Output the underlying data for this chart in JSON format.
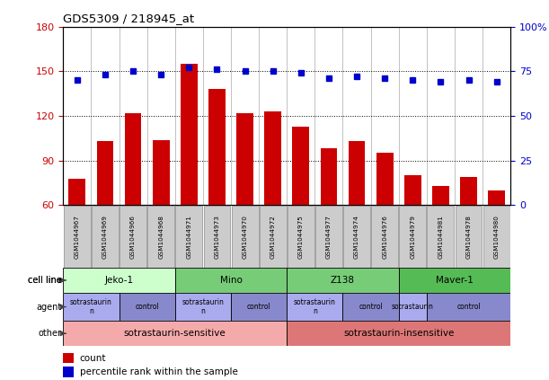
{
  "title": "GDS5309 / 218945_at",
  "samples": [
    "GSM1044967",
    "GSM1044969",
    "GSM1044966",
    "GSM1044968",
    "GSM1044971",
    "GSM1044973",
    "GSM1044970",
    "GSM1044972",
    "GSM1044975",
    "GSM1044977",
    "GSM1044974",
    "GSM1044976",
    "GSM1044979",
    "GSM1044981",
    "GSM1044978",
    "GSM1044980"
  ],
  "counts": [
    78,
    103,
    122,
    104,
    155,
    138,
    122,
    123,
    113,
    98,
    103,
    95,
    80,
    73,
    79,
    70
  ],
  "percentiles": [
    70,
    73,
    75,
    73,
    77,
    76,
    75,
    75,
    74,
    71,
    72,
    71,
    70,
    69,
    70,
    69
  ],
  "bar_color": "#cc0000",
  "dot_color": "#0000cc",
  "ylim_left": [
    60,
    180
  ],
  "ylim_right": [
    0,
    100
  ],
  "yticks_left": [
    60,
    90,
    120,
    150,
    180
  ],
  "yticks_right": [
    0,
    25,
    50,
    75,
    100
  ],
  "ytick_labels_right": [
    "0",
    "25",
    "50",
    "75",
    "100%"
  ],
  "cell_lines": [
    {
      "label": "Jeko-1",
      "start": 0,
      "end": 4,
      "color": "#ccffcc"
    },
    {
      "label": "Mino",
      "start": 4,
      "end": 8,
      "color": "#77cc77"
    },
    {
      "label": "Z138",
      "start": 8,
      "end": 12,
      "color": "#77cc77"
    },
    {
      "label": "Maver-1",
      "start": 12,
      "end": 16,
      "color": "#55bb55"
    }
  ],
  "agents": [
    {
      "label": "sotrastaurin\nn",
      "start": 0,
      "end": 2,
      "color": "#aaaaee"
    },
    {
      "label": "control",
      "start": 2,
      "end": 4,
      "color": "#8888cc"
    },
    {
      "label": "sotrastaurin\nn",
      "start": 4,
      "end": 6,
      "color": "#aaaaee"
    },
    {
      "label": "control",
      "start": 6,
      "end": 8,
      "color": "#8888cc"
    },
    {
      "label": "sotrastaurin\nn",
      "start": 8,
      "end": 10,
      "color": "#aaaaee"
    },
    {
      "label": "control",
      "start": 10,
      "end": 12,
      "color": "#8888cc"
    },
    {
      "label": "sotrastaurin",
      "start": 12,
      "end": 13,
      "color": "#aaaaee"
    },
    {
      "label": "control",
      "start": 13,
      "end": 16,
      "color": "#8888cc"
    }
  ],
  "others": [
    {
      "label": "sotrastaurin-sensitive",
      "start": 0,
      "end": 8,
      "color": "#f4aaaa"
    },
    {
      "label": "sotrastaurin-insensitive",
      "start": 8,
      "end": 16,
      "color": "#dd7777"
    }
  ],
  "row_labels": [
    "cell line",
    "agent",
    "other"
  ],
  "legend_count_label": "count",
  "legend_pct_label": "percentile rank within the sample",
  "bg_color": "#ffffff",
  "plot_bg_color": "#ffffff",
  "spine_color": "#000000",
  "tick_box_color": "#cccccc",
  "tick_box_edge": "#888888"
}
